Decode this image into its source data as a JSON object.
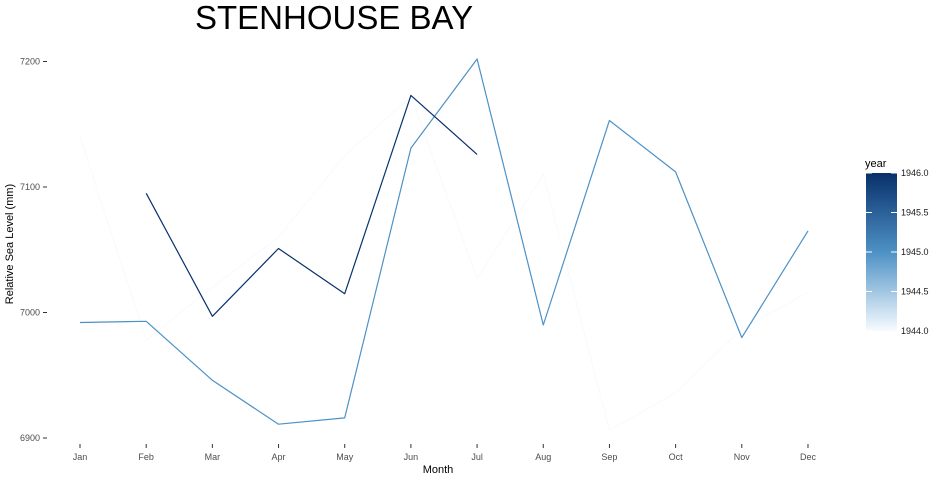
{
  "chart_data": {
    "type": "line",
    "title": "STENHOUSE BAY",
    "xlabel": "Month",
    "ylabel": "Relative Sea Level (mm)",
    "categories": [
      "Jan",
      "Feb",
      "Mar",
      "Apr",
      "May",
      "Jun",
      "Jul",
      "Aug",
      "Sep",
      "Oct",
      "Nov",
      "Dec"
    ],
    "ylim": [
      6895,
      7210
    ],
    "yticks": [
      6900,
      7000,
      7100,
      7200
    ],
    "grid": false,
    "legend": {
      "title": "year",
      "position": "right",
      "type": "colorbar",
      "range": [
        1944.0,
        1946.0
      ],
      "ticks": [
        "1944.0",
        "1944.5",
        "1945.0",
        "1945.5",
        "1946.0"
      ],
      "colors": [
        "#f7fbff",
        "#4d91c5",
        "#08306b"
      ]
    },
    "series": [
      {
        "year": 1944,
        "color": "#f7fbff",
        "values": [
          7140,
          6978,
          7020,
          7060,
          7125,
          7172,
          7027,
          7110,
          6906,
          6936,
          6987,
          7016
        ]
      },
      {
        "year": 1945,
        "color": "#4d91c5",
        "values": [
          6992,
          6993,
          6946,
          6911,
          6916,
          7131,
          7202,
          6990,
          7153,
          7112,
          6980,
          7065
        ]
      },
      {
        "year": 1946,
        "color": "#08306b",
        "values": [
          null,
          7095,
          6997,
          7051,
          7015,
          7173,
          7126,
          null,
          null,
          null,
          null,
          null
        ]
      }
    ]
  }
}
